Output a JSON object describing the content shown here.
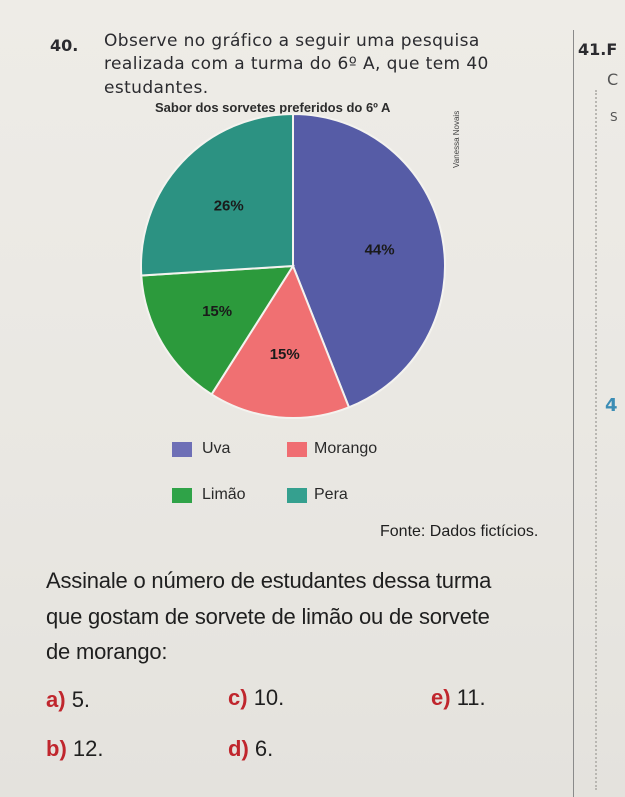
{
  "question": {
    "number": "40.",
    "lines": [
      "Observe no gráfico a seguir uma pesquisa",
      "realizada com a turma do 6º A, que tem 40",
      "estudantes."
    ]
  },
  "side_column": {
    "number": "41.",
    "fragment": "F",
    "marks": [
      "C",
      "S",
      "4"
    ]
  },
  "chart_data": {
    "type": "pie",
    "title": "Sabor dos sorvetes preferidos do 6º A",
    "credit": "Vanessa Novais",
    "slices": [
      {
        "name": "Uva",
        "value": 44,
        "label": "44%",
        "color": "#565ca6"
      },
      {
        "name": "Morango",
        "value": 15,
        "label": "15%",
        "color": "#f07072"
      },
      {
        "name": "Limão",
        "value": 15,
        "label": "15%",
        "color": "#2c9a3c"
      },
      {
        "name": "Pera",
        "value": 26,
        "label": "26%",
        "color": "#2c9282"
      }
    ],
    "legend_placement": "bottom"
  },
  "legend": [
    {
      "label": "Uva",
      "color": "#6e6fb6"
    },
    {
      "label": "Morango",
      "color": "#f06d72"
    },
    {
      "label": "Limão",
      "color": "#2fa348"
    },
    {
      "label": "Pera",
      "color": "#35a08f"
    }
  ],
  "source": "Fonte: Dados fictícios.",
  "prompt_lines": [
    "Assinale o número de estudantes dessa turma",
    "que gostam de sorvete de limão ou de sorvete",
    "de morango:"
  ],
  "options": [
    {
      "letter": "a)",
      "text": "5."
    },
    {
      "letter": "c)",
      "text": "10."
    },
    {
      "letter": "e)",
      "text": "11."
    },
    {
      "letter": "b)",
      "text": "12."
    },
    {
      "letter": "d)",
      "text": "6."
    }
  ]
}
